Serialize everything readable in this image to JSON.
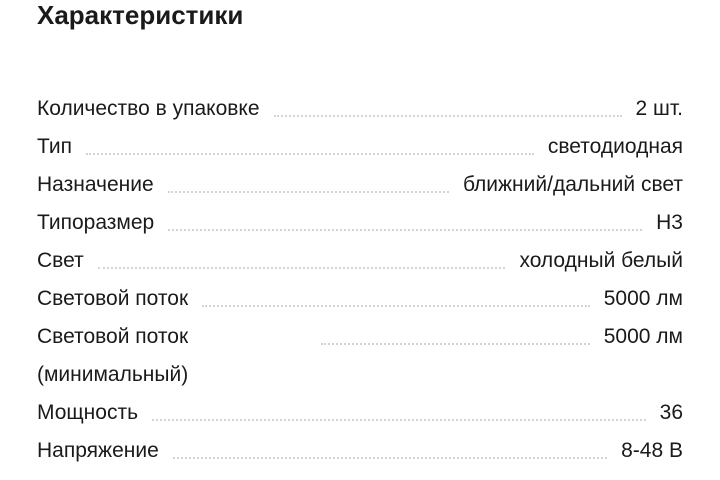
{
  "header": {
    "title": "Характеристики"
  },
  "specs": [
    {
      "label": "Количество в упаковке",
      "value": "2 шт."
    },
    {
      "label": "Тип",
      "value": "светодиодная"
    },
    {
      "label": "Назначение",
      "value": "ближний/дальний свет"
    },
    {
      "label": "Типоразмер",
      "value": "H3"
    },
    {
      "label": "Свет",
      "value": "холодный белый"
    },
    {
      "label": "Световой поток",
      "value": "5000 лм"
    },
    {
      "label": "Световой поток (минимальный)",
      "value": "5000 лм"
    },
    {
      "label": "Мощность",
      "value": "36"
    },
    {
      "label": "Напряжение",
      "value": "8-48 В"
    }
  ]
}
